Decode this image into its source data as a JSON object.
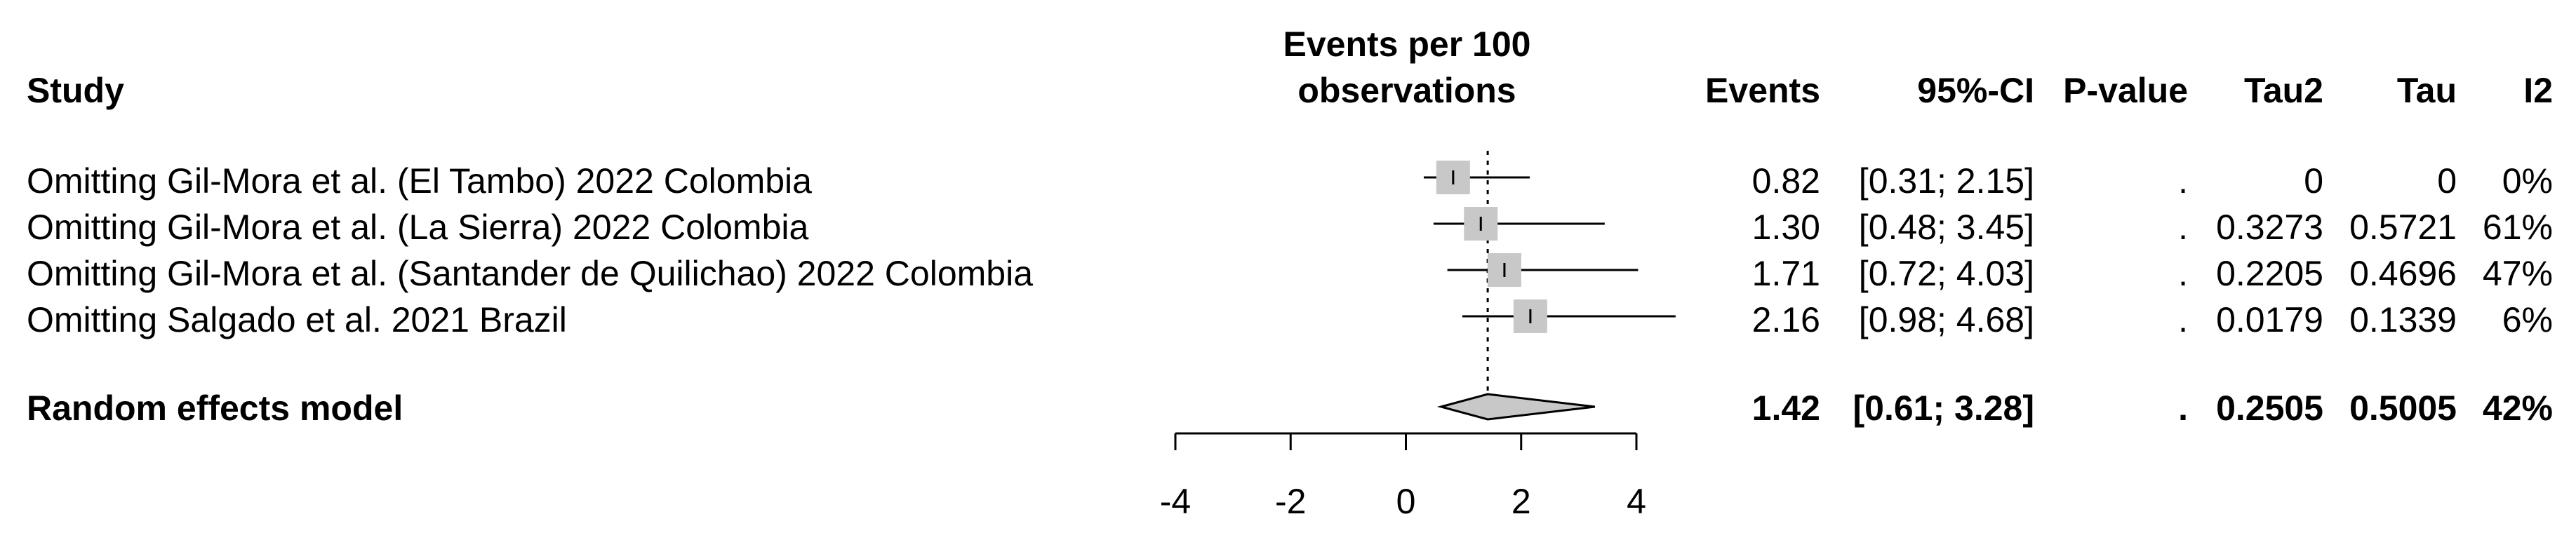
{
  "headers": {
    "study": "Study",
    "plot_line1": "Events per 100",
    "plot_line2": "observations",
    "events": "Events",
    "ci": "95%-CI",
    "pvalue": "P-value",
    "tau2": "Tau2",
    "tau": "Tau",
    "i2": "I2"
  },
  "rows": [
    {
      "study": "Omitting Gil-Mora et al. (El Tambo) 2022 Colombia",
      "events": "0.82",
      "ci": "[0.31; 2.15]",
      "pvalue": ".",
      "tau2": "0",
      "tau": "0",
      "i2": "0%"
    },
    {
      "study": "Omitting Gil-Mora et al. (La Sierra) 2022 Colombia",
      "events": "1.30",
      "ci": "[0.48; 3.45]",
      "pvalue": ".",
      "tau2": "0.3273",
      "tau": "0.5721",
      "i2": "61%"
    },
    {
      "study": "Omitting Gil-Mora et al. (Santander de Quilichao) 2022 Colombia",
      "events": "1.71",
      "ci": "[0.72; 4.03]",
      "pvalue": ".",
      "tau2": "0.2205",
      "tau": "0.4696",
      "i2": "47%"
    },
    {
      "study": "Omitting Salgado et al. 2021 Brazil",
      "events": "2.16",
      "ci": "[0.98; 4.68]",
      "pvalue": ".",
      "tau2": "0.0179",
      "tau": "0.1339",
      "i2": "6%"
    }
  ],
  "summary": {
    "study": "Random effects model",
    "events": "1.42",
    "ci": "[0.61; 3.28]",
    "pvalue": ".",
    "tau2": "0.2505",
    "tau": "0.5005",
    "i2": "42%"
  },
  "chart_data": {
    "type": "forest",
    "title": "Events per 100 observations",
    "xlim": [
      -4,
      4
    ],
    "xticks": [
      "-4",
      "-2",
      "0",
      "2",
      "4"
    ],
    "reference_line": 1.42,
    "reference_line_style": "dotted",
    "series": [
      {
        "name": "Omitting Gil-Mora et al. (El Tambo) 2022 Colombia",
        "estimate": 0.82,
        "lower": 0.31,
        "upper": 2.15
      },
      {
        "name": "Omitting Gil-Mora et al. (La Sierra) 2022 Colombia",
        "estimate": 1.3,
        "lower": 0.48,
        "upper": 3.45
      },
      {
        "name": "Omitting Gil-Mora et al. (Santander de Quilichao) 2022 Colombia",
        "estimate": 1.71,
        "lower": 0.72,
        "upper": 4.03
      },
      {
        "name": "Omitting Salgado et al. 2021 Brazil",
        "estimate": 2.16,
        "lower": 0.98,
        "upper": 4.68
      }
    ],
    "pooled": {
      "name": "Random effects model",
      "estimate": 1.42,
      "lower": 0.61,
      "upper": 3.28
    },
    "colors": {
      "box": "#c8c8c8",
      "diamond": "#c8c8c8",
      "line": "#000000"
    }
  }
}
